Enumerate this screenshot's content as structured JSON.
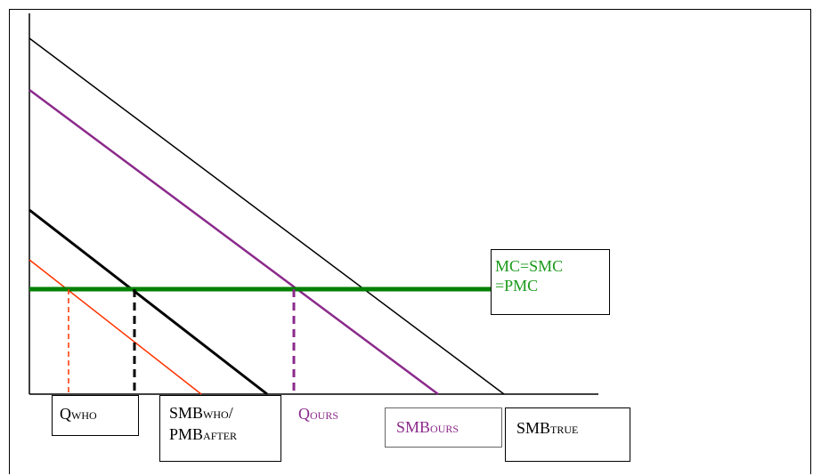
{
  "labels": {
    "mc": {
      "line1": "MC=SMC",
      "line2": "=PMC",
      "color": "#1a9a1a"
    },
    "q_who": {
      "main": "Q",
      "sub": "WHO"
    },
    "smb_who": {
      "main1": "SMB",
      "sub1": "WHO",
      "slash": "/",
      "main2": "PMB",
      "sub2": "AFTER"
    },
    "q_ours": {
      "main": "Q",
      "sub": "OURS",
      "color": "#8b2a8b"
    },
    "smb_ours": {
      "main": "SMB",
      "sub": "OURS",
      "color": "#8b2a8b"
    },
    "smb_true": {
      "main": "SMB",
      "sub": "TRUE"
    }
  },
  "colors": {
    "axis": "#000000",
    "mc_line": "#008000",
    "smb_true_line": "#000000",
    "smb_ours_line": "#8b2a8b",
    "smb_who_line": "#000000",
    "pmb_line": "#ff3300"
  }
}
